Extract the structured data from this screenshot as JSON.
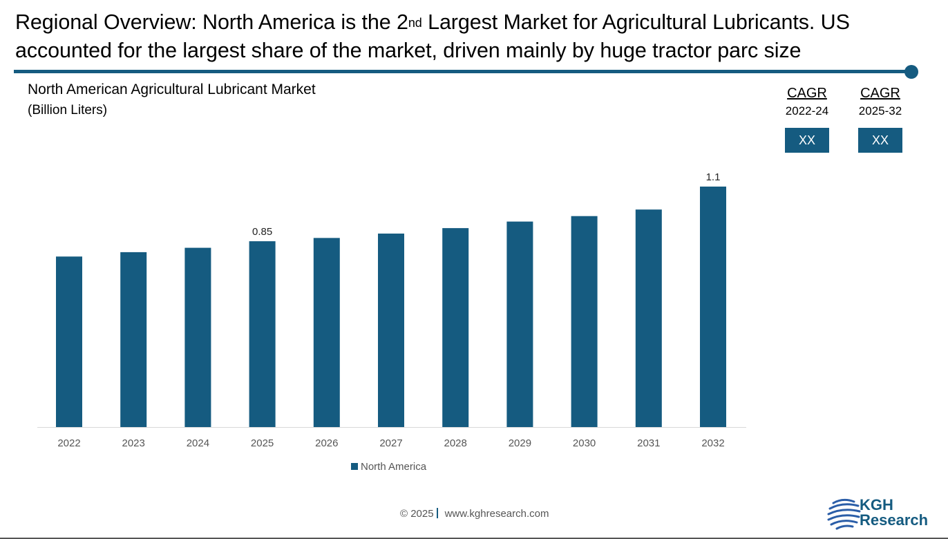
{
  "headline": {
    "part1": "Regional Overview: North America is the 2",
    "sup": "nd",
    "part2": " Largest Market for Agricultural Lubricants. US accounted for the largest share of the market, driven mainly by huge tractor parc size"
  },
  "cagr": [
    {
      "label": "CAGR",
      "period": "2022-24",
      "value": "XX"
    },
    {
      "label": "CAGR",
      "period": "2025-32",
      "value": "XX"
    }
  ],
  "chart_data": {
    "type": "bar",
    "title": "North American Agricultural Lubricant Market",
    "subtitle": "(Billion Liters)",
    "categories": [
      "2022",
      "2023",
      "2024",
      "2025",
      "2026",
      "2027",
      "2028",
      "2029",
      "2030",
      "2031",
      "2032"
    ],
    "series": [
      {
        "name": "North America",
        "color": "#155b80",
        "values": [
          0.78,
          0.8,
          0.82,
          0.85,
          0.865,
          0.885,
          0.91,
          0.94,
          0.965,
          0.995,
          1.1
        ],
        "data_labels": {
          "3": "0.85",
          "10": "1.1"
        }
      }
    ],
    "ylim": [
      0,
      1.1
    ],
    "grid": false,
    "legend": "bottom"
  },
  "footer": {
    "copyright": "© 2025",
    "url": "www.kghresearch.com"
  },
  "logo": {
    "line1": "KGH",
    "line2": "Research"
  }
}
